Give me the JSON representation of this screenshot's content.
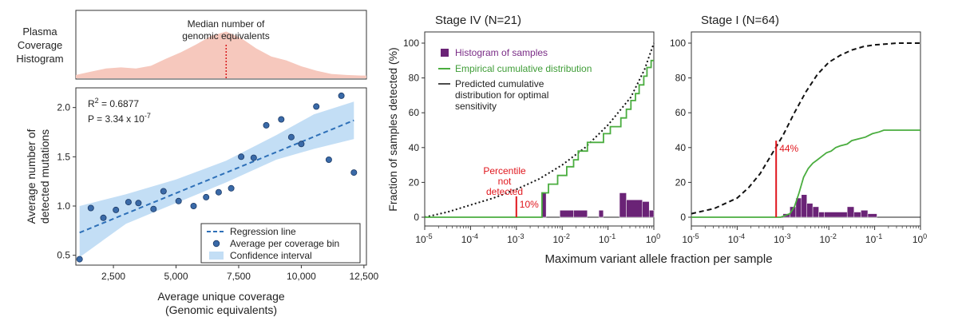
{
  "chart_data": [
    {
      "type": "area",
      "id": "histogram",
      "title": "Plasma Coverage Histogram",
      "title_lines": [
        "Plasma",
        "Coverage",
        "Histogram"
      ],
      "annotation_lines": [
        "Median number of",
        "genomic equivalents"
      ],
      "median_x": 7000,
      "xlim": [
        1000,
        12600
      ],
      "ylim": [
        0,
        1
      ],
      "x": [
        1000,
        1600,
        2200,
        2800,
        3400,
        4000,
        4600,
        5200,
        5800,
        6400,
        7000,
        7600,
        8200,
        8800,
        9400,
        10000,
        10600,
        11200,
        11800,
        12400,
        12600
      ],
      "y": [
        0.06,
        0.12,
        0.18,
        0.2,
        0.18,
        0.23,
        0.36,
        0.48,
        0.62,
        0.78,
        0.86,
        0.74,
        0.55,
        0.4,
        0.33,
        0.22,
        0.14,
        0.08,
        0.06,
        0.05,
        0.05
      ],
      "colors": {
        "fill": "#f6c8bd",
        "median": "#d7191c"
      }
    },
    {
      "type": "scatter",
      "id": "scatter",
      "xlabel_lines": [
        "Average unique coverage",
        "(Genomic equivalents)"
      ],
      "ylabel_lines": [
        "Average number of",
        "detected mutations"
      ],
      "xlim": [
        1000,
        12600
      ],
      "ylim": [
        0.4,
        2.2
      ],
      "xticks": [
        2500,
        5000,
        7500,
        10000,
        12500
      ],
      "xtick_labels": [
        "2,500",
        "5,000",
        "7,500",
        "10,000",
        "12,500"
      ],
      "yticks": [
        0.5,
        1.0,
        1.5,
        2.0
      ],
      "ytick_labels": [
        "0.5",
        "1.0",
        "1.5",
        "2.0"
      ],
      "stats": {
        "r2_label": "R",
        "r2_sup": "2",
        "r2_value": " = 0.6877",
        "p_label": "P = 3.34 x 10",
        "p_sup": "-7"
      },
      "points": [
        {
          "x": 1150,
          "y": 0.46
        },
        {
          "x": 1600,
          "y": 0.98
        },
        {
          "x": 2100,
          "y": 0.88
        },
        {
          "x": 2600,
          "y": 0.96
        },
        {
          "x": 3100,
          "y": 1.04
        },
        {
          "x": 3500,
          "y": 1.03
        },
        {
          "x": 4100,
          "y": 0.97
        },
        {
          "x": 4500,
          "y": 1.15
        },
        {
          "x": 5100,
          "y": 1.05
        },
        {
          "x": 5700,
          "y": 1.0
        },
        {
          "x": 6200,
          "y": 1.09
        },
        {
          "x": 6700,
          "y": 1.14
        },
        {
          "x": 7200,
          "y": 1.18
        },
        {
          "x": 7600,
          "y": 1.5
        },
        {
          "x": 8100,
          "y": 1.49
        },
        {
          "x": 8600,
          "y": 1.82
        },
        {
          "x": 9200,
          "y": 1.88
        },
        {
          "x": 9600,
          "y": 1.7
        },
        {
          "x": 10000,
          "y": 1.63
        },
        {
          "x": 10600,
          "y": 2.01
        },
        {
          "x": 11100,
          "y": 1.47
        },
        {
          "x": 11600,
          "y": 2.12
        },
        {
          "x": 12100,
          "y": 1.34
        }
      ],
      "regression": {
        "x": [
          1150,
          12100
        ],
        "y": [
          0.73,
          1.87
        ]
      },
      "ci_upper": [
        [
          1150,
          1.0
        ],
        [
          3000,
          1.12
        ],
        [
          5000,
          1.27
        ],
        [
          7000,
          1.46
        ],
        [
          9000,
          1.72
        ],
        [
          10500,
          1.93
        ],
        [
          12100,
          2.06
        ]
      ],
      "ci_lower": [
        [
          12100,
          1.68
        ],
        [
          10500,
          1.58
        ],
        [
          9000,
          1.47
        ],
        [
          7000,
          1.24
        ],
        [
          5000,
          1.03
        ],
        [
          3000,
          0.82
        ],
        [
          1150,
          0.48
        ]
      ],
      "legend": [
        {
          "kind": "dash",
          "label": "Regression line"
        },
        {
          "kind": "dot",
          "label": "Average per coverage bin"
        },
        {
          "kind": "box",
          "label": "Confidence interval"
        }
      ],
      "colors": {
        "band": "#c3def5",
        "line": "#2e70b8",
        "point": "#3a6aa8",
        "point_edge": "#1c3a66"
      }
    },
    {
      "type": "line",
      "id": "stage4",
      "title": "Stage IV (N=21)",
      "xscale": "log",
      "xlim_exp": [
        -5,
        0
      ],
      "ylim": [
        0,
        100
      ],
      "yticks": [
        0,
        20,
        40,
        60,
        80,
        100
      ],
      "xtick_exps": [
        -5,
        -4,
        -3,
        -2,
        -1,
        0
      ],
      "ylabel": "Fraction of samples detected (%)",
      "dotted_predicted": {
        "x_exp": [
          -5,
          -4.5,
          -4,
          -3.5,
          -3,
          -2.5,
          -2,
          -1.5,
          -1,
          -0.5,
          -0.2,
          0
        ],
        "y": [
          0,
          3,
          7,
          11,
          16,
          22,
          30,
          40,
          53,
          69,
          85,
          100
        ]
      },
      "green_steps": [
        [
          -5,
          0
        ],
        [
          -2.44,
          0
        ],
        [
          -2.44,
          5
        ],
        [
          -2.44,
          14
        ],
        [
          -2.3,
          14
        ],
        [
          -2.3,
          19
        ],
        [
          -2.1,
          19
        ],
        [
          -2.1,
          24
        ],
        [
          -1.9,
          24
        ],
        [
          -1.9,
          29
        ],
        [
          -1.75,
          29
        ],
        [
          -1.75,
          33
        ],
        [
          -1.65,
          33
        ],
        [
          -1.65,
          38
        ],
        [
          -1.45,
          38
        ],
        [
          -1.45,
          43
        ],
        [
          -1.1,
          43
        ],
        [
          -1.1,
          48
        ],
        [
          -0.95,
          48
        ],
        [
          -0.95,
          52
        ],
        [
          -0.72,
          52
        ],
        [
          -0.72,
          57
        ],
        [
          -0.6,
          57
        ],
        [
          -0.6,
          62
        ],
        [
          -0.5,
          62
        ],
        [
          -0.5,
          67
        ],
        [
          -0.4,
          67
        ],
        [
          -0.4,
          71
        ],
        [
          -0.32,
          71
        ],
        [
          -0.32,
          76
        ],
        [
          -0.22,
          76
        ],
        [
          -0.22,
          81
        ],
        [
          -0.15,
          81
        ],
        [
          -0.15,
          86
        ],
        [
          -0.06,
          86
        ],
        [
          -0.06,
          90
        ],
        [
          0,
          90
        ]
      ],
      "histogram": [
        {
          "x0": -2.45,
          "x1": -2.35,
          "h": 14
        },
        {
          "x0": -2.05,
          "x1": -1.75,
          "h": 4
        },
        {
          "x0": -1.75,
          "x1": -1.45,
          "h": 4
        },
        {
          "x0": -1.2,
          "x1": -1.1,
          "h": 4
        },
        {
          "x0": -0.75,
          "x1": -0.6,
          "h": 14
        },
        {
          "x0": -0.6,
          "x1": -0.25,
          "h": 10
        },
        {
          "x0": -0.25,
          "x1": -0.1,
          "h": 9
        },
        {
          "x0": -0.1,
          "x1": 0,
          "h": 4
        }
      ],
      "marker": {
        "x_exp": -3.0,
        "y": 12,
        "label": "10%"
      },
      "percentile_lines": [
        "Percentile",
        "not",
        "detected"
      ],
      "legend": [
        {
          "kind": "box",
          "label": "Histogram of samples"
        },
        {
          "kind": "green",
          "label": "Empirical cumulative distribution"
        },
        {
          "kind": "black",
          "label_lines": [
            "Predicted cumulative",
            "distribution for optimal",
            "sensitivity"
          ]
        }
      ],
      "colors": {
        "hist": "#6a2376",
        "green": "#4aad3f",
        "red": "#e0161d",
        "legend_hist_text": "#7a2c86",
        "legend_green_text": "#3f9d37"
      }
    },
    {
      "type": "line",
      "id": "stage1",
      "title": "Stage I (N=64)",
      "xscale": "log",
      "xlim_exp": [
        -5,
        0
      ],
      "ylim": [
        0,
        100
      ],
      "yticks": [
        0,
        20,
        40,
        60,
        80,
        100
      ],
      "xtick_exps": [
        -5,
        -4,
        -3,
        -2,
        -1,
        0
      ],
      "dashed_predicted": {
        "x_exp": [
          -5,
          -4.5,
          -4,
          -3.75,
          -3.5,
          -3.25,
          -3,
          -2.75,
          -2.5,
          -2.25,
          -2,
          -1.75,
          -1.5,
          -1.25,
          -1,
          -0.5,
          0
        ],
        "y": [
          2,
          5,
          11,
          17,
          25,
          36,
          47,
          60,
          72,
          82,
          89,
          93,
          96,
          98,
          99,
          100,
          100
        ]
      },
      "green_steps": [
        [
          -5,
          0
        ],
        [
          -3.05,
          0
        ],
        [
          -2.95,
          1
        ],
        [
          -2.85,
          2
        ],
        [
          -2.75,
          6
        ],
        [
          -2.65,
          14
        ],
        [
          -2.55,
          23
        ],
        [
          -2.45,
          28
        ],
        [
          -2.35,
          31
        ],
        [
          -2.25,
          33
        ],
        [
          -2.15,
          35
        ],
        [
          -2.05,
          37
        ],
        [
          -1.95,
          38
        ],
        [
          -1.85,
          40
        ],
        [
          -1.75,
          41
        ],
        [
          -1.6,
          42
        ],
        [
          -1.5,
          44
        ],
        [
          -1.35,
          45
        ],
        [
          -1.2,
          46
        ],
        [
          -1.05,
          48
        ],
        [
          -0.9,
          49
        ],
        [
          -0.8,
          50
        ],
        [
          0,
          50
        ]
      ],
      "histogram": [
        {
          "x0": -3.0,
          "x1": -2.85,
          "h": 2
        },
        {
          "x0": -2.85,
          "x1": -2.72,
          "h": 6
        },
        {
          "x0": -2.72,
          "x1": -2.6,
          "h": 11
        },
        {
          "x0": -2.6,
          "x1": -2.48,
          "h": 13
        },
        {
          "x0": -2.48,
          "x1": -2.35,
          "h": 8
        },
        {
          "x0": -2.35,
          "x1": -2.22,
          "h": 6
        },
        {
          "x0": -2.22,
          "x1": -2.1,
          "h": 3
        },
        {
          "x0": -2.1,
          "x1": -1.6,
          "h": 3
        },
        {
          "x0": -1.6,
          "x1": -1.45,
          "h": 6
        },
        {
          "x0": -1.45,
          "x1": -1.3,
          "h": 3
        },
        {
          "x0": -1.3,
          "x1": -1.15,
          "h": 4
        },
        {
          "x0": -1.15,
          "x1": -0.95,
          "h": 2
        }
      ],
      "marker": {
        "x_exp": -3.15,
        "y": 44,
        "label": "44%"
      },
      "colors": {
        "hist": "#6a2376",
        "green": "#4aad3f",
        "red": "#e0161d"
      }
    }
  ],
  "shared_xlabel": "Maximum variant allele fraction per sample"
}
